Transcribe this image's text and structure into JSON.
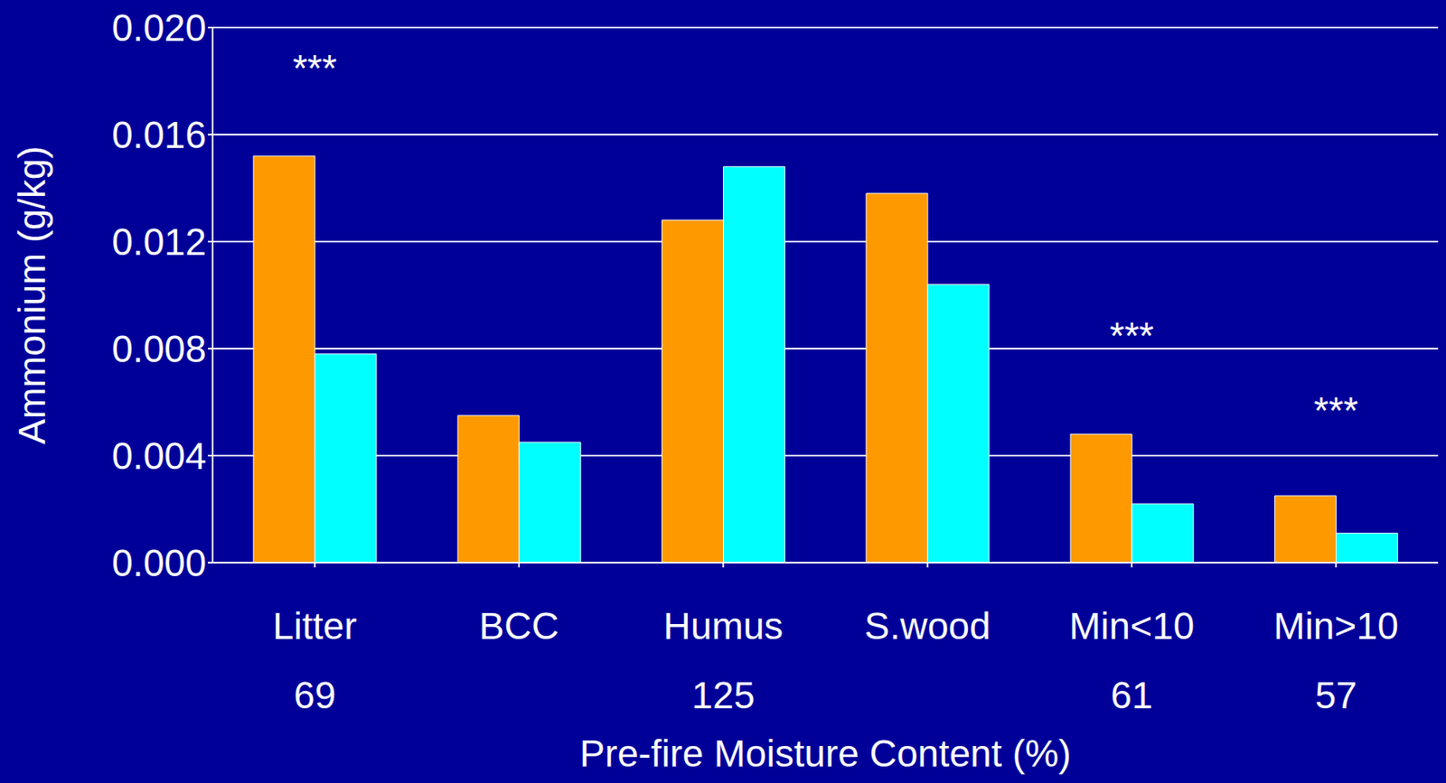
{
  "chart_data": {
    "type": "bar",
    "x_label": "Pre-fire Moisture Content (%)",
    "y_label": "Ammonium (g/kg)",
    "categories": [
      "Litter",
      "BCC",
      "Humus",
      "S.wood",
      "Min<10",
      "Min>10"
    ],
    "moisture": [
      69,
      null,
      125,
      null,
      61,
      57
    ],
    "series": [
      {
        "color": "#ff9900",
        "values": [
          0.0152,
          0.0055,
          0.0128,
          0.0138,
          0.0048,
          0.0025
        ]
      },
      {
        "color": "#00ffff",
        "values": [
          0.0078,
          0.0045,
          0.0148,
          0.0104,
          0.0022,
          0.0011
        ]
      }
    ],
    "ylim": [
      0,
      0.02
    ],
    "yticks": [
      {
        "value": 0,
        "label": "0.000"
      },
      {
        "value": 0.004,
        "label": "0.004"
      },
      {
        "value": 0.008,
        "label": "0.008"
      },
      {
        "value": 0.012,
        "label": "0.012"
      },
      {
        "value": 0.016,
        "label": "0.016"
      },
      {
        "value": 0.02,
        "label": "0.020"
      }
    ],
    "grid": true,
    "annotations": [
      {
        "text": "***",
        "category": "Litter",
        "y": 0.0185
      },
      {
        "text": "***",
        "category": "Min<10",
        "y": 0.0085
      },
      {
        "text": "***",
        "category": "Min>10",
        "y": 0.0057
      }
    ]
  }
}
